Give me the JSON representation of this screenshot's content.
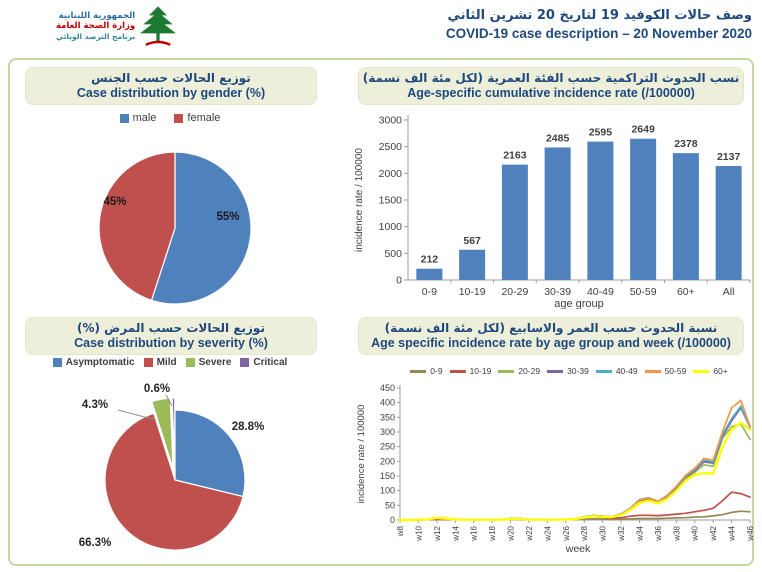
{
  "header": {
    "logo": {
      "line1": "الجمهورية اللبنانية",
      "line2": "وزارة الصحة العامة",
      "line3": "برنامج الترصد الوبائي",
      "cedar_color": "#1e7a33",
      "accent_color": "#c00000"
    },
    "title_ar": "وصف حالات الكوفيد 19 لتاريخ  20 تشرين الثاني",
    "title_en": "COVID-19 case description – 20 November 2020"
  },
  "colors": {
    "panel_border": "#c6d6a0",
    "title_bg": "#edefdb",
    "title_text": "#1F497D",
    "excel_blue": "#4F81BD",
    "excel_red": "#C0504D",
    "excel_green": "#9BBB59",
    "excel_purple": "#8064A2",
    "excel_cyan": "#4BACC6",
    "excel_orange": "#F79646",
    "olive": "#948A54",
    "yellow": "#FFFF00"
  },
  "chart_data": [
    {
      "id": "gender_pie",
      "type": "pie",
      "title_ar": "توزيع الحالات حسب الجنس",
      "title_en": "Case distribution by gender (%)",
      "legend": [
        "male",
        "female"
      ],
      "values": [
        55,
        45
      ],
      "value_labels": [
        "55%",
        "45%"
      ],
      "colors": [
        "#4F81BD",
        "#C0504D"
      ],
      "legend_position": "top"
    },
    {
      "id": "age_cumulative_bar",
      "type": "bar",
      "title_ar": "نسب الحدوث التراكمية حسب الفئة العمرية (لكل مئة الف نسمة)",
      "title_en": "Age-specific cumulative incidence rate (/100000)",
      "categories": [
        "0-9",
        "10-19",
        "20-29",
        "30-39",
        "40-49",
        "50-59",
        "60+",
        "All"
      ],
      "values": [
        212,
        567,
        2163,
        2485,
        2595,
        2649,
        2378,
        2137
      ],
      "xlabel": "age group",
      "ylabel": "incidence rate / 100000",
      "ylim": [
        0,
        3000
      ],
      "ytick_step": 500,
      "bar_color": "#4F81BD",
      "grid": false
    },
    {
      "id": "severity_pie",
      "type": "pie",
      "title_ar": "توزيع الحالات حسب المرض (%)",
      "title_en": "Case distribution by severity (%)",
      "legend": [
        "Asymptomatic",
        "Mild",
        "Severe",
        "Critical"
      ],
      "values": [
        28.8,
        66.3,
        4.3,
        0.6
      ],
      "value_labels": [
        "28.8%",
        "66.3%",
        "4.3%",
        "0.6%"
      ],
      "colors": [
        "#4F81BD",
        "#C0504D",
        "#9BBB59",
        "#8064A2"
      ],
      "exploded": [
        false,
        false,
        true,
        true
      ],
      "legend_position": "top"
    },
    {
      "id": "weekly_incidence_lines",
      "type": "line",
      "title_ar": "نسبة الحدوث حسب العمر والاسابيع (لكل مئة الف نسمة)",
      "title_en": "Age specific incidence rate by age group and week (/100000)",
      "xlabel": "week",
      "ylabel": "incidence rate / 100000",
      "ylim": [
        0,
        450
      ],
      "ytick_step": 50,
      "grid": false,
      "legend_position": "top",
      "x_weeks": [
        8,
        9,
        10,
        11,
        12,
        13,
        14,
        15,
        16,
        17,
        18,
        19,
        20,
        21,
        22,
        23,
        24,
        25,
        26,
        27,
        28,
        29,
        30,
        31,
        32,
        33,
        34,
        35,
        36,
        37,
        38,
        39,
        40,
        41,
        42,
        43,
        44,
        45,
        46
      ],
      "xtick_labels": [
        "w8",
        "w10",
        "w12",
        "w14",
        "w16",
        "w18",
        "w20",
        "w22",
        "w24",
        "w26",
        "w28",
        "w30",
        "w32",
        "w34",
        "w36",
        "w38",
        "w40",
        "w42",
        "w44",
        "w46"
      ],
      "series": [
        {
          "name": "0-9",
          "color": "#948A54",
          "values": [
            0,
            0,
            0,
            1,
            2,
            1,
            1,
            1,
            1,
            1,
            1,
            1,
            5,
            5,
            2,
            1,
            1,
            1,
            1,
            2,
            3,
            4,
            3,
            2,
            3,
            4,
            5,
            5,
            5,
            6,
            7,
            8,
            10,
            11,
            14,
            18,
            26,
            30,
            28
          ]
        },
        {
          "name": "10-19",
          "color": "#C0504D",
          "values": [
            0,
            0,
            1,
            1,
            3,
            2,
            1,
            1,
            1,
            1,
            1,
            1,
            3,
            3,
            1,
            1,
            1,
            1,
            1,
            2,
            9,
            12,
            9,
            6,
            8,
            13,
            16,
            16,
            15,
            17,
            20,
            23,
            28,
            33,
            40,
            65,
            95,
            90,
            78
          ]
        },
        {
          "name": "20-29",
          "color": "#9BBB59",
          "values": [
            0,
            0,
            1,
            2,
            5,
            3,
            2,
            1,
            1,
            1,
            1,
            1,
            4,
            5,
            2,
            1,
            1,
            1,
            2,
            3,
            11,
            15,
            12,
            10,
            19,
            36,
            62,
            70,
            60,
            76,
            106,
            140,
            162,
            188,
            183,
            278,
            318,
            328,
            275
          ]
        },
        {
          "name": "30-39",
          "color": "#8064A2",
          "values": [
            0,
            0,
            1,
            2,
            5,
            3,
            2,
            1,
            1,
            1,
            1,
            1,
            4,
            5,
            2,
            1,
            1,
            1,
            2,
            3,
            10,
            15,
            13,
            11,
            20,
            38,
            66,
            73,
            62,
            80,
            110,
            146,
            168,
            198,
            194,
            284,
            338,
            382,
            318
          ]
        },
        {
          "name": "40-49",
          "color": "#4BACC6",
          "values": [
            0,
            0,
            1,
            2,
            5,
            3,
            2,
            1,
            1,
            1,
            1,
            1,
            4,
            5,
            2,
            1,
            1,
            1,
            2,
            3,
            11,
            16,
            13,
            11,
            21,
            40,
            70,
            76,
            63,
            82,
            113,
            148,
            172,
            204,
            198,
            290,
            345,
            388,
            315
          ]
        },
        {
          "name": "50-59",
          "color": "#F79646",
          "values": [
            0,
            0,
            1,
            2,
            5,
            3,
            2,
            1,
            1,
            1,
            1,
            1,
            4,
            5,
            2,
            1,
            1,
            1,
            2,
            3,
            10,
            15,
            13,
            11,
            20,
            39,
            68,
            75,
            64,
            84,
            115,
            152,
            176,
            210,
            204,
            300,
            382,
            408,
            320
          ]
        },
        {
          "name": "60+",
          "color": "#FFFF00",
          "values": [
            0,
            0,
            1,
            2,
            8,
            5,
            2,
            1,
            1,
            1,
            1,
            1,
            3,
            4,
            2,
            1,
            1,
            1,
            2,
            3,
            9,
            13,
            11,
            10,
            17,
            34,
            58,
            66,
            57,
            72,
            100,
            134,
            154,
            160,
            158,
            248,
            308,
            332,
            308
          ]
        }
      ]
    }
  ]
}
